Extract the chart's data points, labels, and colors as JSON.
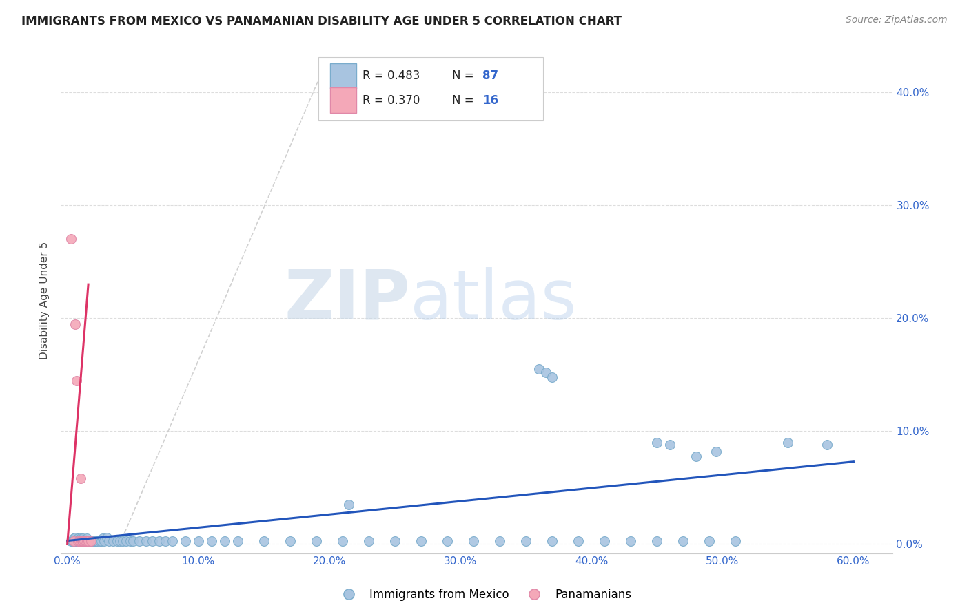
{
  "title": "IMMIGRANTS FROM MEXICO VS PANAMANIAN DISABILITY AGE UNDER 5 CORRELATION CHART",
  "source": "Source: ZipAtlas.com",
  "ylabel": "Disability Age Under 5",
  "x_tick_labels": [
    "0.0%",
    "10.0%",
    "20.0%",
    "30.0%",
    "40.0%",
    "50.0%",
    "60.0%"
  ],
  "x_tick_values": [
    0.0,
    0.1,
    0.2,
    0.3,
    0.4,
    0.5,
    0.6
  ],
  "y_tick_labels_right": [
    "0.0%",
    "10.0%",
    "20.0%",
    "30.0%",
    "40.0%"
  ],
  "y_tick_values": [
    0.0,
    0.1,
    0.2,
    0.3,
    0.4
  ],
  "xlim": [
    -0.005,
    0.63
  ],
  "ylim": [
    -0.008,
    0.44
  ],
  "blue_R": "0.483",
  "blue_N": "87",
  "pink_R": "0.370",
  "pink_N": "16",
  "blue_color": "#a8c4e0",
  "pink_color": "#f4a8b8",
  "blue_line_color": "#2255bb",
  "pink_line_color": "#dd3366",
  "dash_color": "#cccccc",
  "watermark_zip": "ZIP",
  "watermark_atlas": "atlas",
  "legend_bottom_blue": "Immigrants from Mexico",
  "legend_bottom_pink": "Panamanians",
  "grid_color": "#dddddd",
  "background_color": "#ffffff",
  "blue_scatter_x": [
    0.003,
    0.004,
    0.005,
    0.005,
    0.006,
    0.006,
    0.007,
    0.007,
    0.008,
    0.008,
    0.008,
    0.009,
    0.009,
    0.01,
    0.01,
    0.01,
    0.011,
    0.011,
    0.012,
    0.012,
    0.013,
    0.013,
    0.014,
    0.014,
    0.015,
    0.015,
    0.016,
    0.017,
    0.018,
    0.019,
    0.02,
    0.021,
    0.022,
    0.023,
    0.025,
    0.026,
    0.027,
    0.028,
    0.03,
    0.032,
    0.035,
    0.038,
    0.04,
    0.042,
    0.045,
    0.048,
    0.05,
    0.055,
    0.06,
    0.065,
    0.07,
    0.075,
    0.08,
    0.09,
    0.1,
    0.11,
    0.12,
    0.13,
    0.15,
    0.17,
    0.19,
    0.21,
    0.23,
    0.25,
    0.27,
    0.29,
    0.31,
    0.33,
    0.35,
    0.37,
    0.39,
    0.41,
    0.43,
    0.45,
    0.47,
    0.49,
    0.51,
    0.36,
    0.365,
    0.37,
    0.45,
    0.46,
    0.55,
    0.58,
    0.48,
    0.495,
    0.215
  ],
  "blue_scatter_y": [
    0.003,
    0.003,
    0.003,
    0.005,
    0.003,
    0.006,
    0.003,
    0.004,
    0.003,
    0.005,
    0.003,
    0.004,
    0.003,
    0.003,
    0.005,
    0.003,
    0.003,
    0.004,
    0.003,
    0.005,
    0.003,
    0.004,
    0.003,
    0.003,
    0.003,
    0.005,
    0.003,
    0.003,
    0.003,
    0.003,
    0.003,
    0.003,
    0.003,
    0.003,
    0.003,
    0.003,
    0.005,
    0.003,
    0.006,
    0.003,
    0.003,
    0.003,
    0.003,
    0.003,
    0.003,
    0.003,
    0.003,
    0.003,
    0.003,
    0.003,
    0.003,
    0.003,
    0.003,
    0.003,
    0.003,
    0.003,
    0.003,
    0.003,
    0.003,
    0.003,
    0.003,
    0.003,
    0.003,
    0.003,
    0.003,
    0.003,
    0.003,
    0.003,
    0.003,
    0.003,
    0.003,
    0.003,
    0.003,
    0.003,
    0.003,
    0.003,
    0.003,
    0.155,
    0.152,
    0.148,
    0.09,
    0.088,
    0.09,
    0.088,
    0.078,
    0.082,
    0.035
  ],
  "pink_scatter_x": [
    0.003,
    0.005,
    0.006,
    0.007,
    0.008,
    0.009,
    0.01,
    0.01,
    0.011,
    0.012,
    0.012,
    0.013,
    0.014,
    0.015,
    0.016,
    0.018
  ],
  "pink_scatter_y": [
    0.27,
    0.003,
    0.195,
    0.145,
    0.003,
    0.003,
    0.058,
    0.003,
    0.003,
    0.003,
    0.003,
    0.003,
    0.003,
    0.003,
    0.003,
    0.003
  ],
  "blue_line_x": [
    0.0,
    0.6
  ],
  "blue_line_y": [
    0.003,
    0.073
  ],
  "pink_line_x": [
    0.0,
    0.016
  ],
  "pink_line_y": [
    0.0,
    0.23
  ],
  "dash_line_x": [
    0.04,
    0.195
  ],
  "dash_line_y": [
    0.0,
    0.42
  ]
}
